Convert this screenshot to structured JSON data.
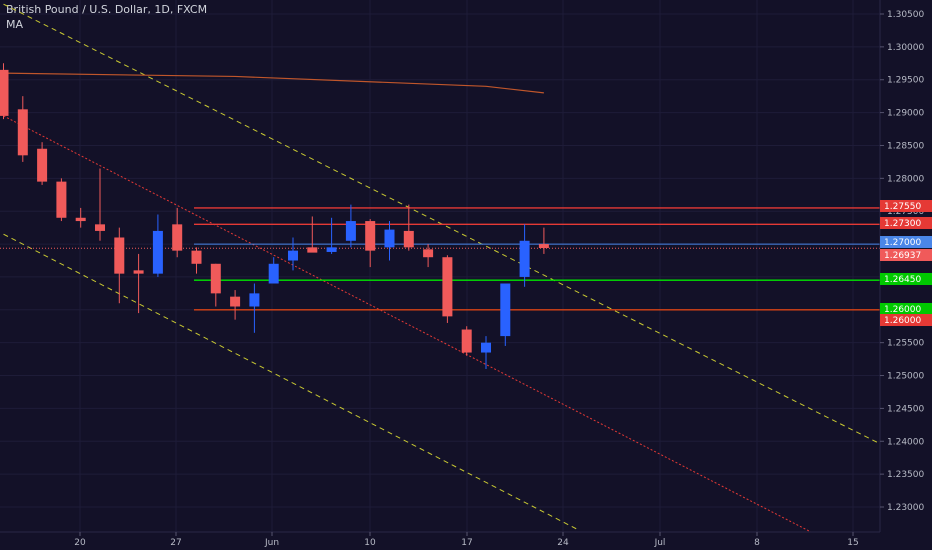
{
  "header": {
    "title": "British Pound / U.S. Dollar, 1D, FXCM",
    "ma_label": "MA"
  },
  "colors": {
    "background": "#131128",
    "up": "#2962ff",
    "down": "#f05a5a",
    "resistance": "#e53935",
    "support_green": "#00e600",
    "support_red": "#d84315",
    "last_price_line": "#4a86e8",
    "channel_yellow": "#c8c832",
    "channel_red": "#e53935",
    "ma": "#c0562b",
    "grid": "#1e1c38",
    "axis_text": "#b7bac6"
  },
  "chart_data": {
    "type": "candlestick",
    "symbol": "British Pound / U.S. Dollar",
    "interval": "1D",
    "source": "FXCM",
    "ylim": [
      1.2255,
      1.3065
    ],
    "y_ticks": [
      "1.30500",
      "1.30000",
      "1.29500",
      "1.29000",
      "1.28500",
      "1.28000",
      "1.27500",
      "1.27000",
      "1.26500",
      "1.26000",
      "1.25500",
      "1.25000",
      "1.24500",
      "1.24000",
      "1.23500",
      "1.23000"
    ],
    "x_ticks": [
      "20",
      "27",
      "Jun",
      "10",
      "17",
      "24",
      "Jul",
      "8",
      "15"
    ],
    "candles": [
      {
        "o": 1.2965,
        "h": 1.2975,
        "l": 1.289,
        "c": 1.2895
      },
      {
        "o": 1.2905,
        "h": 1.2925,
        "l": 1.2825,
        "c": 1.2835
      },
      {
        "o": 1.2845,
        "h": 1.2855,
        "l": 1.279,
        "c": 1.2795
      },
      {
        "o": 1.2795,
        "h": 1.28,
        "l": 1.2735,
        "c": 1.274
      },
      {
        "o": 1.274,
        "h": 1.2755,
        "l": 1.2725,
        "c": 1.2735
      },
      {
        "o": 1.273,
        "h": 1.2815,
        "l": 1.2705,
        "c": 1.272
      },
      {
        "o": 1.271,
        "h": 1.2725,
        "l": 1.261,
        "c": 1.2655
      },
      {
        "o": 1.266,
        "h": 1.2685,
        "l": 1.2595,
        "c": 1.2655
      },
      {
        "o": 1.2655,
        "h": 1.2745,
        "l": 1.265,
        "c": 1.272
      },
      {
        "o": 1.273,
        "h": 1.2755,
        "l": 1.268,
        "c": 1.269
      },
      {
        "o": 1.269,
        "h": 1.2695,
        "l": 1.2655,
        "c": 1.267
      },
      {
        "o": 1.267,
        "h": 1.267,
        "l": 1.2605,
        "c": 1.2625
      },
      {
        "o": 1.262,
        "h": 1.263,
        "l": 1.2585,
        "c": 1.2605
      },
      {
        "o": 1.2605,
        "h": 1.264,
        "l": 1.2565,
        "c": 1.2625
      },
      {
        "o": 1.264,
        "h": 1.268,
        "l": 1.264,
        "c": 1.267
      },
      {
        "o": 1.2675,
        "h": 1.271,
        "l": 1.266,
        "c": 1.269
      },
      {
        "o": 1.2695,
        "h": 1.2742,
        "l": 1.269,
        "c": 1.2687
      },
      {
        "o": 1.2688,
        "h": 1.274,
        "l": 1.2685,
        "c": 1.2695
      },
      {
        "o": 1.2705,
        "h": 1.276,
        "l": 1.2695,
        "c": 1.2735
      },
      {
        "o": 1.2735,
        "h": 1.2738,
        "l": 1.2665,
        "c": 1.269
      },
      {
        "o": 1.2695,
        "h": 1.2735,
        "l": 1.2675,
        "c": 1.2722
      },
      {
        "o": 1.272,
        "h": 1.276,
        "l": 1.269,
        "c": 1.2695
      },
      {
        "o": 1.2692,
        "h": 1.27,
        "l": 1.2665,
        "c": 1.268
      },
      {
        "o": 1.268,
        "h": 1.2683,
        "l": 1.258,
        "c": 1.259
      },
      {
        "o": 1.257,
        "h": 1.2575,
        "l": 1.253,
        "c": 1.2535
      },
      {
        "o": 1.2535,
        "h": 1.256,
        "l": 1.251,
        "c": 1.255
      },
      {
        "o": 1.256,
        "h": 1.264,
        "l": 1.2545,
        "c": 1.264
      },
      {
        "o": 1.265,
        "h": 1.273,
        "l": 1.2635,
        "c": 1.2705
      },
      {
        "o": 1.27,
        "h": 1.2725,
        "l": 1.2685,
        "c": 1.2694
      }
    ],
    "horizontal_levels": [
      {
        "price": 1.2755,
        "label": "1.27550",
        "color": "#e53935"
      },
      {
        "price": 1.273,
        "label": "1.27300",
        "color": "#e53935"
      },
      {
        "price": 1.2645,
        "label": "1.26450",
        "color": "#00e600"
      },
      {
        "price": 1.26,
        "label": "1.26000",
        "color": "#d84315"
      }
    ],
    "price_tags": [
      {
        "label": "1.27550",
        "price": 1.2755,
        "color": "#e53935"
      },
      {
        "label": "1.27300",
        "price": 1.273,
        "color": "#e53935"
      },
      {
        "label": "1.27000",
        "price": 1.27,
        "color": "#4a86e8"
      },
      {
        "label": "1.26937",
        "price": 1.26937,
        "color": "#f05a5a"
      },
      {
        "label": "1.26450",
        "price": 1.2645,
        "color": "#00c800"
      },
      {
        "label": "1.26000",
        "price": 1.26,
        "color": "#00c800"
      },
      {
        "label": "1.26000",
        "price": 1.259,
        "color": "#e53935"
      }
    ],
    "last_price": 1.26937,
    "last_price_line": 1.27,
    "ma_curve": [
      [
        0,
        1.296
      ],
      [
        12,
        1.2955
      ],
      [
        25,
        1.294
      ],
      [
        28,
        1.293
      ]
    ],
    "channel_lines": [
      {
        "color": "#c8c832",
        "from": [
          0,
          1.3065
        ],
        "to": [
          45.5,
          1.2395
        ]
      },
      {
        "color": "#c8c832",
        "from": [
          0,
          1.2715
        ],
        "to": [
          29.8,
          1.2265
        ]
      },
      {
        "color": "#e53935",
        "from": [
          0,
          1.2895
        ],
        "to": [
          42.3,
          1.2255
        ]
      }
    ]
  }
}
